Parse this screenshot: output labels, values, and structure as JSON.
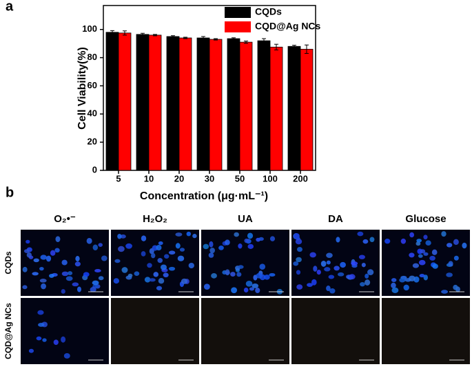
{
  "chart_data": {
    "type": "bar",
    "panel_label": "a",
    "categories": [
      "5",
      "10",
      "20",
      "30",
      "50",
      "100",
      "200"
    ],
    "series": [
      {
        "name": "CQDs",
        "color": "#000000",
        "values": [
          98,
          96.5,
          95,
          94,
          93.5,
          92,
          88
        ],
        "errors": [
          1.2,
          0.8,
          0.6,
          1.0,
          0.6,
          1.5,
          0.8
        ]
      },
      {
        "name": "CQD@Ag NCs",
        "color": "#ff0000",
        "values": [
          97.5,
          96,
          94,
          93,
          91,
          87.5,
          86
        ],
        "errors": [
          1.5,
          0.5,
          0.5,
          0.5,
          0.8,
          2.0,
          3.0
        ]
      }
    ],
    "x_label": "Concentration (μg·mL⁻¹)",
    "y_label": "Cell Viability(%)",
    "ylim": [
      0,
      117
    ],
    "yticks": [
      0,
      20,
      40,
      60,
      80,
      100
    ],
    "legend": "top-right"
  },
  "panel_b": {
    "panel_label": "b",
    "columns": [
      "O₂•⁻",
      "H₂O₂",
      "UA",
      "DA",
      "Glucose"
    ],
    "rows": [
      "CQDs",
      "CQD@Ag NCs"
    ]
  }
}
